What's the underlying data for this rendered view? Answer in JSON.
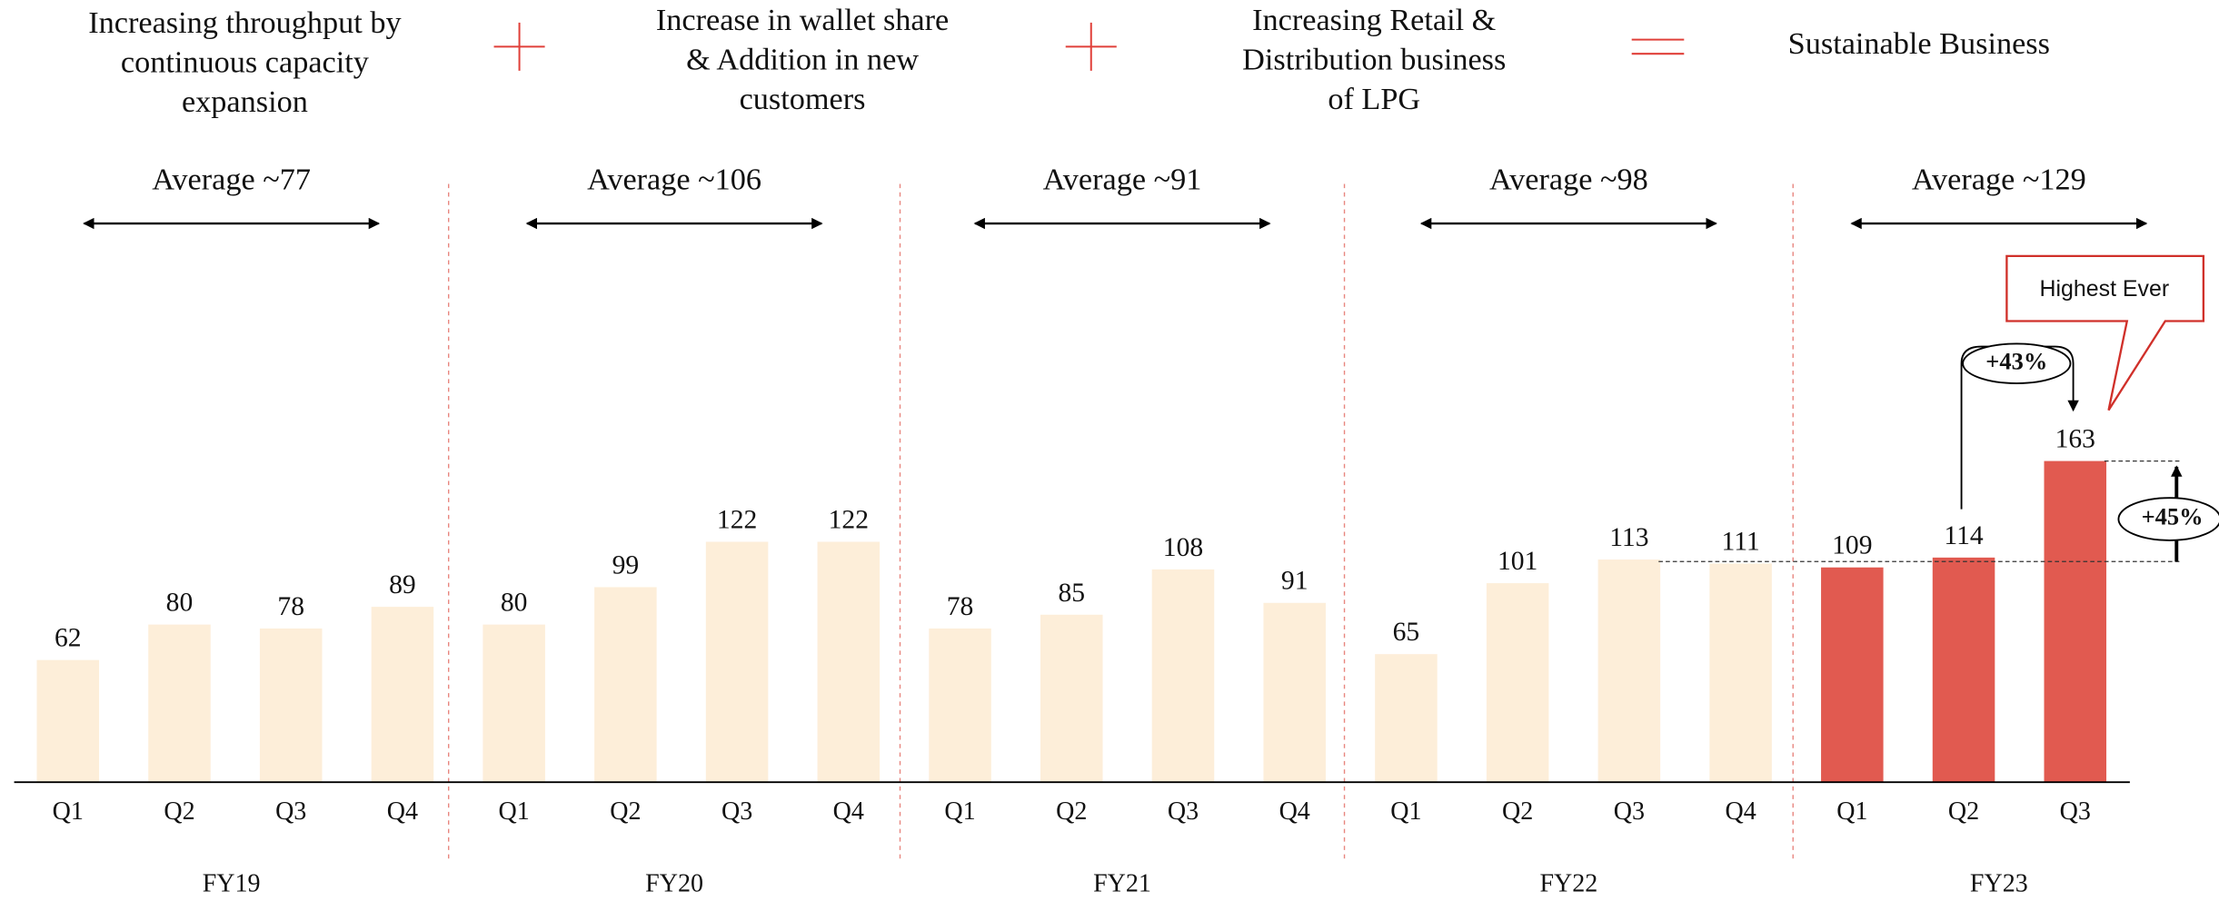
{
  "header": {
    "items": [
      {
        "lines": [
          "Increasing throughput by",
          "continuous capacity",
          "expansion"
        ]
      },
      {
        "lines": [
          "Increase in wallet share",
          "& Addition in new",
          "customers"
        ]
      },
      {
        "lines": [
          "Increasing Retail &",
          "Distribution business",
          "of LPG"
        ]
      },
      {
        "lines": [
          "Sustainable Business"
        ]
      }
    ]
  },
  "chart_data": {
    "type": "bar",
    "categories": [
      "Q1",
      "Q2",
      "Q3",
      "Q4",
      "Q1",
      "Q2",
      "Q3",
      "Q4",
      "Q1",
      "Q2",
      "Q3",
      "Q4",
      "Q1",
      "Q2",
      "Q3",
      "Q4",
      "Q1",
      "Q2",
      "Q3"
    ],
    "values": [
      62,
      80,
      78,
      89,
      80,
      99,
      122,
      122,
      78,
      85,
      108,
      91,
      65,
      101,
      113,
      111,
      109,
      114,
      163
    ],
    "colors": [
      "#fdeed9",
      "#fdeed9",
      "#fdeed9",
      "#fdeed9",
      "#fdeed9",
      "#fdeed9",
      "#fdeed9",
      "#fdeed9",
      "#fdeed9",
      "#fdeed9",
      "#fdeed9",
      "#fdeed9",
      "#fdeed9",
      "#fdeed9",
      "#fdeed9",
      "#fdeed9",
      "#e15a50",
      "#e15a50",
      "#e15a50"
    ],
    "ylim": [
      0,
      200
    ],
    "groups": [
      {
        "label": "FY19",
        "average": "Average ~77"
      },
      {
        "label": "FY20",
        "average": "Average ~106"
      },
      {
        "label": "FY21",
        "average": "Average ~91"
      },
      {
        "label": "FY22",
        "average": "Average ~98"
      },
      {
        "label": "FY23",
        "average": "Average ~129"
      }
    ],
    "annotations": {
      "callout": "Highest Ever",
      "qoq": "+43%",
      "growth": "+45%"
    }
  }
}
